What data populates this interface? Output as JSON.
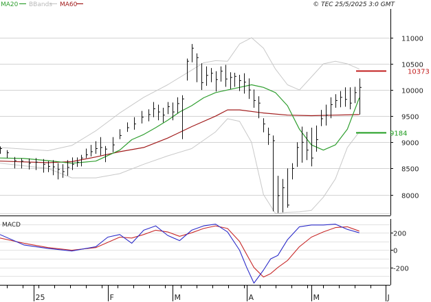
{
  "chart_data": [
    {
      "type": "line",
      "panel": "price",
      "legend": [
        {
          "name": "MA20",
          "color": "#2e9e2e"
        },
        {
          "name": "BBands",
          "color": "#c8c8c8"
        },
        {
          "name": "MA60",
          "color": "#a11b1b"
        }
      ],
      "source": "© TEC 25/5/2025 3:0 GMT",
      "y_ticks": [
        "11000",
        "10500",
        "10000",
        "9500",
        "9000",
        "8500",
        "8000"
      ],
      "ylim": [
        7600,
        11550
      ],
      "grid": true,
      "x_ticks": [
        "25",
        "F",
        "M",
        "A",
        "M",
        "J"
      ],
      "xlim": [
        0,
        163
      ],
      "price_ticks": [
        0,
        3,
        6,
        9,
        12,
        15,
        18,
        20,
        22,
        24,
        26,
        28,
        30,
        32,
        34,
        36,
        38,
        40,
        42,
        44,
        47,
        50,
        53,
        56,
        59,
        62,
        64,
        66,
        68,
        70,
        72,
        74,
        76,
        78,
        80,
        82,
        84,
        86,
        88,
        90,
        92,
        94,
        96,
        98,
        100,
        102,
        104,
        106,
        108,
        110,
        112,
        114,
        116,
        118,
        120,
        122,
        124,
        126,
        128,
        130,
        132,
        134,
        136,
        138,
        140,
        142,
        144,
        146,
        148,
        150
      ],
      "price_closes": [
        8880,
        8800,
        8650,
        8640,
        8600,
        8620,
        8580,
        8540,
        8530,
        8480,
        8440,
        8520,
        8580,
        8620,
        8700,
        8760,
        8820,
        8880,
        8900,
        8870,
        8950,
        9130,
        9280,
        9350,
        9480,
        9530,
        9640,
        9580,
        9520,
        9680,
        9580,
        9740,
        9830,
        10550,
        10800,
        10620,
        10140,
        10280,
        10320,
        10200,
        10360,
        10210,
        10240,
        10260,
        10180,
        10150,
        10000,
        9800,
        9750,
        9350,
        9150,
        9030,
        7980,
        8130,
        7800,
        8500,
        8900,
        9000,
        8850,
        8700,
        9050,
        9450,
        9520,
        9720,
        9800,
        9860,
        9820,
        9750,
        9950,
        10050
      ],
      "price_lows": [
        8780,
        8700,
        8500,
        8500,
        8480,
        8470,
        8420,
        8430,
        8370,
        8290,
        8320,
        8360,
        8470,
        8530,
        8540,
        8700,
        8730,
        8780,
        8750,
        8620,
        8810,
        9060,
        9200,
        9240,
        9360,
        9400,
        9480,
        9420,
        9380,
        9540,
        9420,
        9550,
        9060,
        10180,
        10530,
        10150,
        10000,
        10080,
        10150,
        9970,
        10160,
        10060,
        10020,
        10060,
        9980,
        9930,
        9830,
        9660,
        9460,
        9190,
        8950,
        7680,
        7650,
        7660,
        7750,
        8290,
        8530,
        8610,
        8660,
        8540,
        8820,
        9310,
        9320,
        9460,
        9660,
        9670,
        9680,
        9630,
        9750,
        9530
      ],
      "price_highs": [
        8920,
        8850,
        8720,
        8690,
        8690,
        8700,
        8680,
        8640,
        8660,
        8600,
        8580,
        8660,
        8710,
        8710,
        8760,
        8880,
        8950,
        9020,
        9100,
        8930,
        9100,
        9250,
        9380,
        9480,
        9600,
        9630,
        9770,
        9720,
        9660,
        9770,
        9760,
        9860,
        9900,
        10600,
        10880,
        10700,
        10510,
        10450,
        10420,
        10360,
        10450,
        10480,
        10340,
        10330,
        10290,
        10320,
        10220,
        10010,
        9880,
        9460,
        9280,
        9130,
        8360,
        8300,
        8500,
        8600,
        9000,
        9300,
        9200,
        9280,
        9320,
        9620,
        9720,
        9860,
        9920,
        9980,
        10050,
        10050,
        10060,
        10220
      ],
      "ma20": {
        "x": [
          0,
          10,
          20,
          30,
          40,
          50,
          55,
          60,
          65,
          70,
          75,
          80,
          85,
          90,
          95,
          100,
          105,
          110,
          115,
          120,
          125,
          130,
          135,
          140,
          145,
          150
        ],
        "y": [
          8700,
          8690,
          8650,
          8600,
          8640,
          8850,
          9050,
          9150,
          9280,
          9420,
          9580,
          9700,
          9850,
          9950,
          10000,
          10050,
          10100,
          10050,
          9950,
          9700,
          9250,
          8950,
          8850,
          8950,
          9250,
          9850
        ]
      },
      "ma60": {
        "x": [
          0,
          20,
          30,
          40,
          50,
          60,
          70,
          80,
          90,
          95,
          100,
          110,
          120,
          130,
          140,
          150
        ],
        "y": [
          8640,
          8610,
          8630,
          8720,
          8820,
          8900,
          9080,
          9300,
          9500,
          9620,
          9620,
          9560,
          9520,
          9510,
          9520,
          9530
        ]
      },
      "bb_upper": {
        "x": [
          0,
          20,
          30,
          40,
          50,
          60,
          70,
          80,
          85,
          90,
          95,
          100,
          105,
          110,
          115,
          120,
          125,
          130,
          135,
          140,
          145,
          150
        ],
        "y": [
          8900,
          8840,
          8940,
          9220,
          9560,
          9860,
          10100,
          10380,
          10520,
          10560,
          10550,
          10880,
          11000,
          10800,
          10400,
          10100,
          10000,
          10250,
          10500,
          10550,
          10500,
          10400
        ]
      },
      "bb_lower": {
        "x": [
          0,
          20,
          30,
          40,
          50,
          60,
          70,
          80,
          90,
          95,
          100,
          105,
          110,
          115,
          120,
          125,
          130,
          135,
          140,
          145,
          150
        ],
        "y": [
          8600,
          8500,
          8320,
          8320,
          8400,
          8580,
          8740,
          8880,
          9200,
          9450,
          9400,
          9000,
          8000,
          7640,
          7660,
          7670,
          7700,
          7950,
          8300,
          8900,
          9200
        ]
      },
      "right_labels": [
        {
          "text": "10373",
          "value": 10373,
          "color": "#c21d1d"
        },
        {
          "text": "9184",
          "value": 9184,
          "color": "#1d9c1d"
        }
      ]
    },
    {
      "type": "line",
      "panel": "macd",
      "title": "MACD",
      "y_ticks": [
        "200",
        "0",
        "-200"
      ],
      "ylim": [
        -400,
        360
      ],
      "grid": true,
      "macd": {
        "x": [
          0,
          10,
          20,
          30,
          40,
          45,
          50,
          55,
          60,
          65,
          70,
          75,
          80,
          85,
          90,
          95,
          100,
          103,
          106,
          110,
          113,
          116,
          120,
          125,
          130,
          135,
          140,
          145,
          150
        ],
        "y": [
          180,
          60,
          20,
          -10,
          40,
          150,
          180,
          80,
          230,
          280,
          170,
          110,
          230,
          280,
          300,
          210,
          0,
          -200,
          -380,
          -230,
          -100,
          -60,
          120,
          270,
          290,
          290,
          300,
          240,
          200
        ]
      },
      "signal": {
        "x": [
          0,
          10,
          20,
          30,
          40,
          50,
          55,
          60,
          65,
          70,
          75,
          80,
          85,
          90,
          95,
          100,
          103,
          106,
          110,
          113,
          116,
          120,
          125,
          130,
          135,
          140,
          145,
          150
        ],
        "y": [
          140,
          80,
          30,
          0,
          30,
          150,
          140,
          180,
          230,
          210,
          160,
          200,
          250,
          280,
          250,
          100,
          -50,
          -200,
          -310,
          -270,
          -200,
          -120,
          40,
          150,
          210,
          260,
          270,
          220
        ]
      },
      "colors": {
        "macd": "#2a2ac8",
        "signal": "#c82a2a"
      }
    }
  ]
}
